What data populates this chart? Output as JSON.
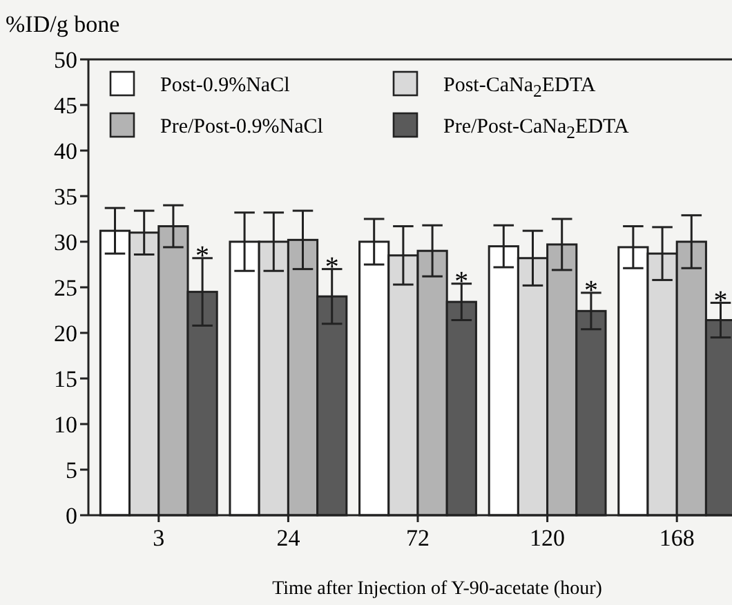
{
  "chart_data": {
    "type": "bar",
    "ylabel": "%ID/g bone",
    "xlabel": "Time after Injection of Y-90-acetate (hour)",
    "categories": [
      "3",
      "24",
      "72",
      "120",
      "168"
    ],
    "series": [
      {
        "name": "Post-0.9%NaCl",
        "color": "#ffffff",
        "values": [
          31.2,
          30.0,
          30.0,
          29.5,
          29.4
        ],
        "errors": [
          2.5,
          3.2,
          2.5,
          2.3,
          2.3
        ]
      },
      {
        "name": "Post-CaNa$_{2}$EDTA",
        "color": "#d9d9d9",
        "values": [
          31.0,
          30.0,
          28.5,
          28.2,
          28.7
        ],
        "errors": [
          2.4,
          3.2,
          3.2,
          3.0,
          2.9
        ]
      },
      {
        "name": "Pre/Post-0.9%NaCl",
        "color": "#b3b3b3",
        "values": [
          31.7,
          30.2,
          29.0,
          29.7,
          30.0
        ],
        "errors": [
          2.3,
          3.2,
          2.8,
          2.8,
          2.9
        ]
      },
      {
        "name": "Pre/Post-CaNa$_{2}$EDTA",
        "color": "#5a5a5a",
        "values": [
          24.5,
          24.0,
          23.4,
          22.4,
          21.4
        ],
        "errors": [
          3.7,
          3.0,
          2.0,
          2.0,
          1.9
        ]
      }
    ],
    "annotations": [
      {
        "text": "*",
        "x": "3",
        "y": 29
      },
      {
        "text": "*",
        "x": "24",
        "y": 27.8
      },
      {
        "text": "*",
        "x": "72",
        "y": 26.2
      },
      {
        "text": "*",
        "x": "120",
        "y": 25.2
      },
      {
        "text": "*",
        "x": "168",
        "y": 24.1
      }
    ],
    "ylim": [
      0,
      50
    ],
    "yticks": [
      0,
      5,
      10,
      15,
      20,
      25,
      30,
      35,
      40,
      45,
      50
    ],
    "legend": "top left",
    "grid": false
  }
}
